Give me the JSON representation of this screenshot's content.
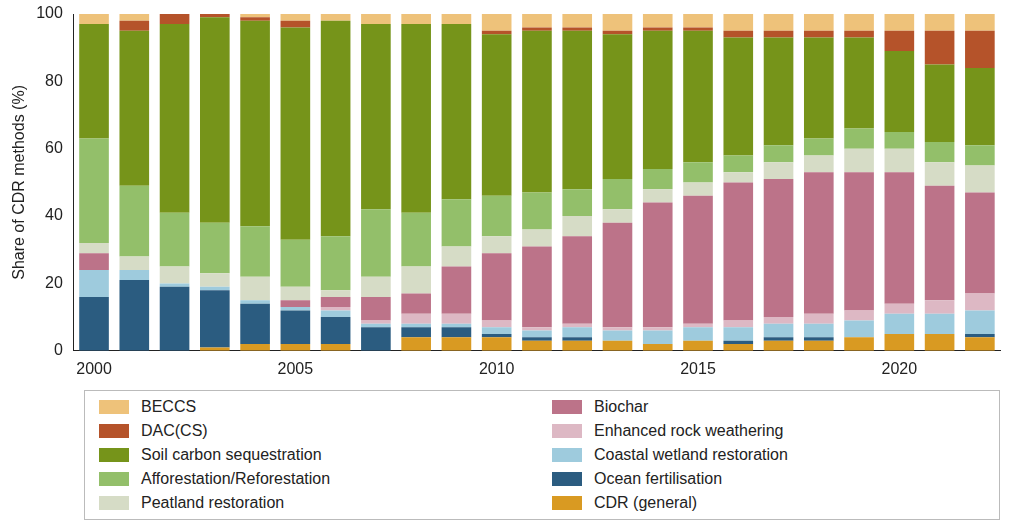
{
  "chart_data": {
    "type": "bar",
    "stacked": true,
    "y_label": "Share of CDR methods (%)",
    "categories": [
      "2000",
      null,
      null,
      null,
      null,
      "2005",
      null,
      null,
      null,
      null,
      "2010",
      null,
      null,
      null,
      null,
      "2015",
      null,
      null,
      null,
      null,
      "2020",
      null,
      null
    ],
    "ylim": [
      0,
      100
    ],
    "yticks": [
      0,
      20,
      40,
      60,
      80,
      100
    ],
    "grid": false,
    "legend": "bottom",
    "series": [
      {
        "name": "BECCS",
        "color": "#eec27a",
        "values": [
          3,
          2,
          0,
          0,
          1,
          2,
          2,
          3,
          3,
          3,
          5,
          4,
          4,
          5,
          4,
          4,
          5,
          5,
          5,
          5,
          5,
          5,
          5
        ]
      },
      {
        "name": "DAC(CS)",
        "color": "#b5532a",
        "values": [
          0,
          3,
          3,
          1,
          1,
          2,
          0,
          0,
          0,
          0,
          1,
          1,
          1,
          1,
          1,
          1,
          2,
          2,
          2,
          2,
          6,
          10,
          11
        ]
      },
      {
        "name": "Soil carbon sequestration",
        "color": "#76941a",
        "values": [
          34,
          46,
          56,
          61,
          61,
          63,
          64,
          55,
          56,
          52,
          48,
          48,
          47,
          43,
          41,
          39,
          35,
          32,
          30,
          27,
          24,
          23,
          23
        ]
      },
      {
        "name": "Afforestation/Reforestation",
        "color": "#93bf6a",
        "values": [
          31,
          21,
          16,
          15,
          15,
          14,
          16,
          20,
          16,
          14,
          12,
          11,
          8,
          9,
          6,
          6,
          5,
          5,
          5,
          6,
          5,
          6,
          6
        ]
      },
      {
        "name": "Peatland restoration",
        "color": "#d6dcc6",
        "values": [
          3,
          4,
          5,
          4,
          7,
          4,
          2,
          6,
          8,
          6,
          5,
          5,
          6,
          4,
          4,
          4,
          3,
          5,
          5,
          7,
          7,
          7,
          8
        ]
      },
      {
        "name": "Biochar",
        "color": "#bc7389",
        "values": [
          5,
          0,
          0,
          0,
          0,
          2,
          3,
          7,
          6,
          14,
          20,
          24,
          26,
          31,
          37,
          38,
          41,
          41,
          42,
          41,
          39,
          34,
          30
        ]
      },
      {
        "name": "Enhanced rock weathering",
        "color": "#ddb8c4",
        "values": [
          0,
          0,
          0,
          0,
          0,
          0,
          1,
          1,
          3,
          3,
          2,
          1,
          1,
          1,
          1,
          1,
          2,
          2,
          3,
          3,
          3,
          4,
          5
        ]
      },
      {
        "name": "Coastal wetland restoration",
        "color": "#9ecbdd",
        "values": [
          8,
          3,
          1,
          1,
          1,
          1,
          2,
          1,
          1,
          1,
          2,
          2,
          3,
          3,
          4,
          4,
          4,
          4,
          4,
          5,
          6,
          6,
          7
        ]
      },
      {
        "name": "Ocean fertilisation",
        "color": "#2b5c80",
        "values": [
          16,
          21,
          19,
          17,
          12,
          10,
          8,
          7,
          3,
          3,
          1,
          1,
          1,
          0,
          0,
          0,
          1,
          1,
          1,
          0,
          0,
          0,
          1
        ]
      },
      {
        "name": "CDR (general)",
        "color": "#d99a22",
        "values": [
          0,
          0,
          0,
          1,
          2,
          2,
          2,
          0,
          4,
          4,
          4,
          3,
          3,
          3,
          2,
          3,
          2,
          3,
          3,
          4,
          5,
          5,
          4
        ]
      }
    ]
  }
}
